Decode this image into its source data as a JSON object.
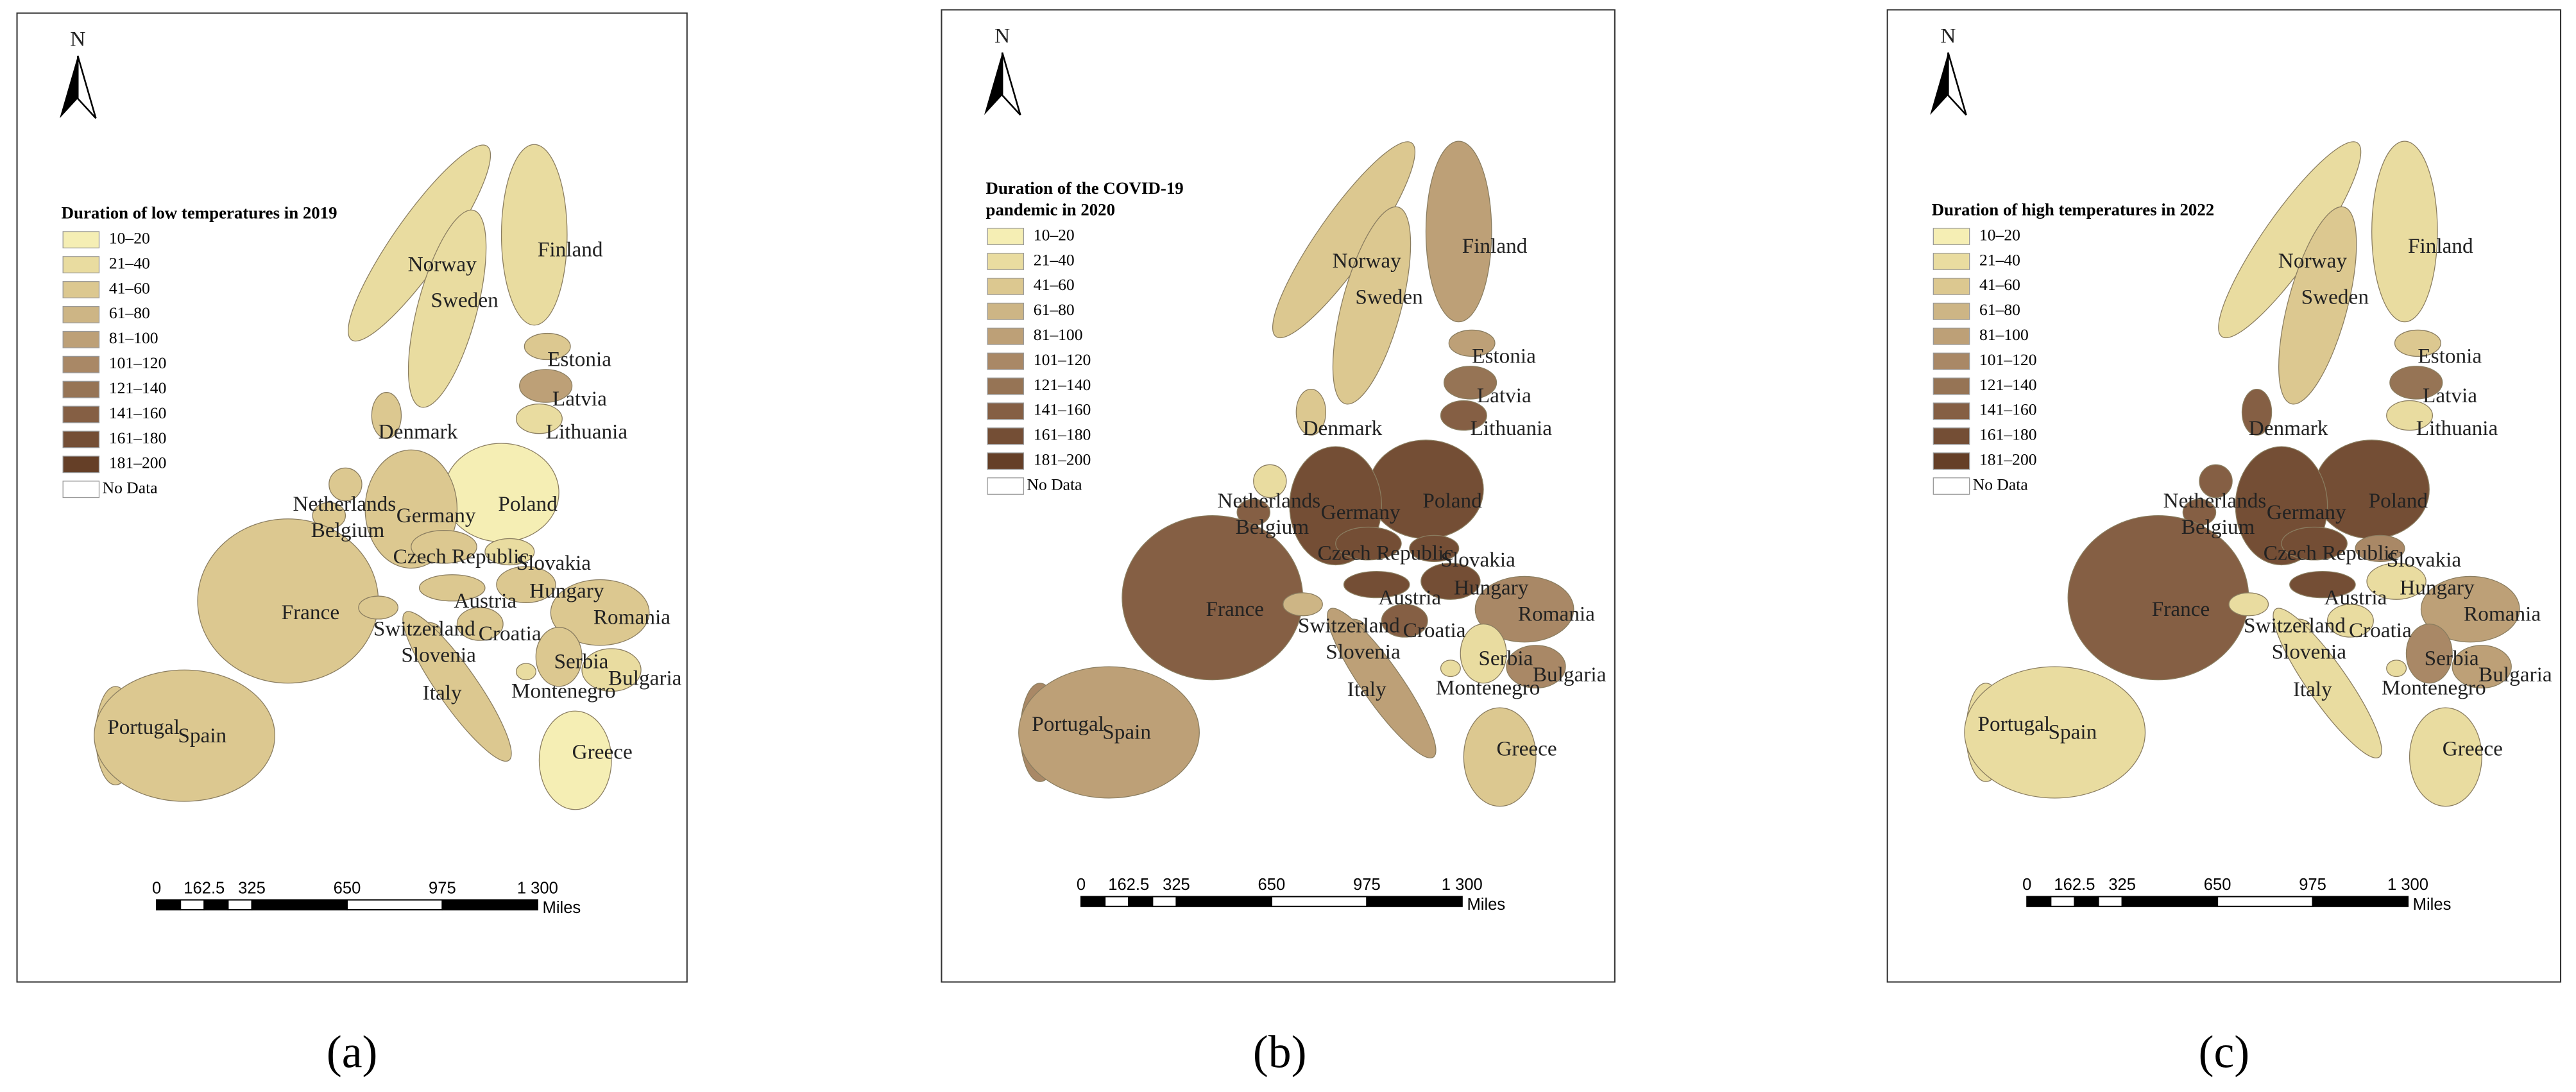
{
  "panels": [
    {
      "legend_title": [
        "Duration of low temperatures in 2019"
      ],
      "north": "N",
      "legend": [
        "10–20",
        "21–40",
        "41–60",
        "61–80",
        "81–100",
        "101–120",
        "121–140",
        "141–160",
        "161–180",
        "181–200",
        "No Data"
      ],
      "legend_colors": [
        "#f5eeb4",
        "#e9dca0",
        "#dcc890",
        "#cdb585",
        "#bda077",
        "#a98866",
        "#967455",
        "#855f44",
        "#744e35",
        "#653f27",
        "#ffffff"
      ],
      "countries": [
        {
          "name": "Norway",
          "fill": "#e9dca0"
        },
        {
          "name": "Finland",
          "fill": "#e9dca0"
        },
        {
          "name": "Sweden",
          "fill": "#e9dca0"
        },
        {
          "name": "Estonia",
          "fill": "#dcc890"
        },
        {
          "name": "Latvia",
          "fill": "#bda077"
        },
        {
          "name": "Lithuania",
          "fill": "#e9dca0"
        },
        {
          "name": "Denmark",
          "fill": "#dcc890"
        },
        {
          "name": "Poland",
          "fill": "#f5eeb4"
        },
        {
          "name": "Netherlands",
          "fill": "#dcc890"
        },
        {
          "name": "Germany",
          "fill": "#dcc890"
        },
        {
          "name": "Belgium",
          "fill": "#dcc890"
        },
        {
          "name": "Czech Republic",
          "fill": "#dcc890"
        },
        {
          "name": "Slovakia",
          "fill": "#e9dca0"
        },
        {
          "name": "Austria",
          "fill": "#dcc890"
        },
        {
          "name": "Hungary",
          "fill": "#dcc890"
        },
        {
          "name": "France",
          "fill": "#dcc890"
        },
        {
          "name": "Romania",
          "fill": "#dcc890"
        },
        {
          "name": "Switzerland",
          "fill": "#dcc890"
        },
        {
          "name": "Croatia",
          "fill": "#dcc890"
        },
        {
          "name": "Slovenia",
          "fill": "#dcc890"
        },
        {
          "name": "Serbia",
          "fill": "#dcc890"
        },
        {
          "name": "Bulgaria",
          "fill": "#e9dca0"
        },
        {
          "name": "Montenegro",
          "fill": "#e9dca0"
        },
        {
          "name": "Italy",
          "fill": "#dcc890"
        },
        {
          "name": "Portugal",
          "fill": "#dcc890"
        },
        {
          "name": "Spain",
          "fill": "#dcc890"
        },
        {
          "name": "Greece",
          "fill": "#f5eeb4"
        }
      ],
      "scale_bar": {
        "labels": [
          "0",
          "162.5",
          "325",
          "650",
          "975",
          "1 300"
        ],
        "unit": "Miles"
      },
      "caption": "(a)"
    },
    {
      "legend_title": [
        "Duration of the COVID-19",
        "pandemic in 2020"
      ],
      "north": "N",
      "legend": [
        "10–20",
        "21–40",
        "41–60",
        "61–80",
        "81–100",
        "101–120",
        "121–140",
        "141–160",
        "161–180",
        "181–200",
        "No Data"
      ],
      "legend_colors": [
        "#f5eeb4",
        "#e9dca0",
        "#dcc890",
        "#cdb585",
        "#bda077",
        "#a98866",
        "#967455",
        "#855f44",
        "#744e35",
        "#653f27",
        "#ffffff"
      ],
      "countries": [
        {
          "name": "Norway",
          "fill": "#dcc890"
        },
        {
          "name": "Finland",
          "fill": "#bda077"
        },
        {
          "name": "Sweden",
          "fill": "#dcc890"
        },
        {
          "name": "Estonia",
          "fill": "#bda077"
        },
        {
          "name": "Latvia",
          "fill": "#967455"
        },
        {
          "name": "Lithuania",
          "fill": "#855f44"
        },
        {
          "name": "Denmark",
          "fill": "#dcc890"
        },
        {
          "name": "Poland",
          "fill": "#744e35"
        },
        {
          "name": "Netherlands",
          "fill": "#e9dca0"
        },
        {
          "name": "Germany",
          "fill": "#744e35"
        },
        {
          "name": "Belgium",
          "fill": "#855f44"
        },
        {
          "name": "Czech Republic",
          "fill": "#744e35"
        },
        {
          "name": "Slovakia",
          "fill": "#744e35"
        },
        {
          "name": "Austria",
          "fill": "#744e35"
        },
        {
          "name": "Hungary",
          "fill": "#744e35"
        },
        {
          "name": "France",
          "fill": "#855f44"
        },
        {
          "name": "Romania",
          "fill": "#a98866"
        },
        {
          "name": "Switzerland",
          "fill": "#cdb585"
        },
        {
          "name": "Croatia",
          "fill": "#855f44"
        },
        {
          "name": "Slovenia",
          "fill": "#bda077"
        },
        {
          "name": "Serbia",
          "fill": "#e9dca0"
        },
        {
          "name": "Bulgaria",
          "fill": "#a98866"
        },
        {
          "name": "Montenegro",
          "fill": "#e9dca0"
        },
        {
          "name": "Italy",
          "fill": "#bda077"
        },
        {
          "name": "Portugal",
          "fill": "#a98866"
        },
        {
          "name": "Spain",
          "fill": "#bda077"
        },
        {
          "name": "Greece",
          "fill": "#dcc890"
        }
      ],
      "scale_bar": {
        "labels": [
          "0",
          "162.5",
          "325",
          "650",
          "975",
          "1 300"
        ],
        "unit": "Miles"
      },
      "caption": "(b)"
    },
    {
      "legend_title": [
        "Duration of high temperatures in 2022"
      ],
      "north": "N",
      "legend": [
        "10–20",
        "21–40",
        "41–60",
        "61–80",
        "81–100",
        "101–120",
        "121–140",
        "141–160",
        "161–180",
        "181–200",
        "No Data"
      ],
      "legend_colors": [
        "#f5eeb4",
        "#e9dca0",
        "#dcc890",
        "#cdb585",
        "#bda077",
        "#a98866",
        "#967455",
        "#855f44",
        "#744e35",
        "#653f27",
        "#ffffff"
      ],
      "countries": [
        {
          "name": "Norway",
          "fill": "#e9dca0"
        },
        {
          "name": "Finland",
          "fill": "#e9dca0"
        },
        {
          "name": "Sweden",
          "fill": "#dcc890"
        },
        {
          "name": "Estonia",
          "fill": "#dcc890"
        },
        {
          "name": "Latvia",
          "fill": "#967455"
        },
        {
          "name": "Lithuania",
          "fill": "#e9dca0"
        },
        {
          "name": "Denmark",
          "fill": "#855f44"
        },
        {
          "name": "Poland",
          "fill": "#744e35"
        },
        {
          "name": "Netherlands",
          "fill": "#855f44"
        },
        {
          "name": "Germany",
          "fill": "#744e35"
        },
        {
          "name": "Belgium",
          "fill": "#855f44"
        },
        {
          "name": "Czech Republic",
          "fill": "#744e35"
        },
        {
          "name": "Slovakia",
          "fill": "#a98866"
        },
        {
          "name": "Austria",
          "fill": "#744e35"
        },
        {
          "name": "Hungary",
          "fill": "#e9dca0"
        },
        {
          "name": "France",
          "fill": "#855f44"
        },
        {
          "name": "Romania",
          "fill": "#bda077"
        },
        {
          "name": "Switzerland",
          "fill": "#e9dca0"
        },
        {
          "name": "Croatia",
          "fill": "#e9dca0"
        },
        {
          "name": "Slovenia",
          "fill": "#e9dca0"
        },
        {
          "name": "Serbia",
          "fill": "#a98866"
        },
        {
          "name": "Bulgaria",
          "fill": "#bda077"
        },
        {
          "name": "Montenegro",
          "fill": "#e9dca0"
        },
        {
          "name": "Italy",
          "fill": "#e9dca0"
        },
        {
          "name": "Portugal",
          "fill": "#e9dca0"
        },
        {
          "name": "Spain",
          "fill": "#e9dca0"
        },
        {
          "name": "Greece",
          "fill": "#e9dca0"
        }
      ],
      "scale_bar": {
        "labels": [
          "0",
          "162.5",
          "325",
          "650",
          "975",
          "1 300"
        ],
        "unit": "Miles"
      },
      "caption": "(c)"
    }
  ]
}
